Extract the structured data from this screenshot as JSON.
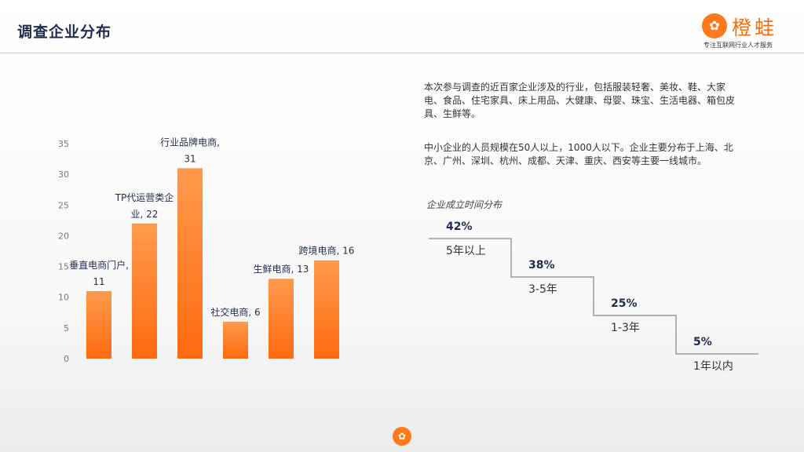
{
  "header": {
    "title": "调查企业分布",
    "logo_name": "橙蛙",
    "logo_tagline": "专注互联网行业人才服务",
    "logo_icon": "lotus-logo-icon"
  },
  "colors": {
    "bar_top": "#ff9a4d",
    "bar_bottom": "#ff6a10",
    "accent": "#f07010",
    "navy": "#1f2d4d"
  },
  "chart_data": [
    {
      "type": "bar",
      "categories": [
        "垂直电商门户",
        "TP代运营类企业",
        "行业品牌电商",
        "社交电商",
        "生鲜电商",
        "跨境电商"
      ],
      "values": [
        11,
        22,
        31,
        6,
        13,
        16
      ],
      "data_labels": [
        [
          "垂直电商门户,",
          "11"
        ],
        [
          "TP代运营类企",
          "业, 22"
        ],
        [
          "行业品牌电商,",
          "31"
        ],
        [
          "社交电商, 6"
        ],
        [
          "生鲜电商, 13"
        ],
        [
          "跨境电商, 16"
        ]
      ],
      "y_ticks": [
        0,
        5,
        10,
        15,
        20,
        25,
        30,
        35
      ],
      "ylim": [
        0,
        35
      ],
      "title": "",
      "xlabel": "",
      "ylabel": "",
      "grid": false
    },
    {
      "type": "step",
      "title": "企业成立时间分布",
      "categories": [
        "5年以上",
        "3-5年",
        "1-3年",
        "1年以内"
      ],
      "values": [
        42,
        38,
        25,
        5
      ],
      "labels": [
        "42%",
        "38%",
        "25%",
        "5%"
      ]
    }
  ],
  "text": {
    "para1": "本次参与调查的近百家企业涉及的行业，包括服装轻奢、美妆、鞋、大家电、食品、住宅家具、床上用品、大健康、母婴、珠宝、生活电器、箱包皮具、生鲜等。",
    "para2": "中小企业的人员规模在50人以上，1000人以下。企业主要分布于上海、北京、广州、深圳、杭州、成都、天津、重庆、西安等主要一线城市。"
  }
}
